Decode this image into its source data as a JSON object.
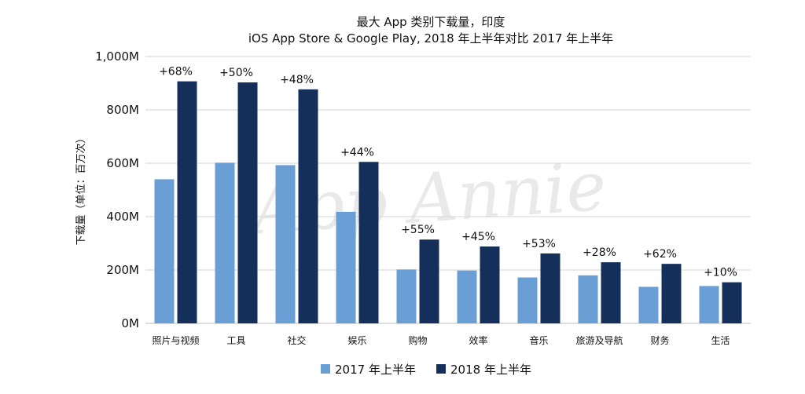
{
  "chart_data": {
    "type": "bar",
    "title": "最大 App 类别下载量，印度",
    "subtitle": "iOS App Store & Google Play, 2018 年上半年对比 2017 年上半年",
    "xlabel": "",
    "ylabel": "下载量（单位：百万次）",
    "ylim": [
      0,
      1000
    ],
    "yticks": [
      0,
      200,
      400,
      600,
      800,
      1000
    ],
    "ytick_labels": [
      "0M",
      "200M",
      "400M",
      "600M",
      "800M",
      "1,000M"
    ],
    "categories": [
      "照片与视频",
      "工具",
      "社交",
      "娱乐",
      "购物",
      "效率",
      "音乐",
      "旅游及导航",
      "财务",
      "生活"
    ],
    "series": [
      {
        "name": "2017 年上半年",
        "color": "#6a9fd6",
        "values": [
          540,
          602,
          593,
          418,
          202,
          198,
          172,
          180,
          137,
          140
        ]
      },
      {
        "name": "2018 年上半年",
        "color": "#14305a",
        "values": [
          907,
          903,
          877,
          605,
          314,
          288,
          262,
          229,
          223,
          154
        ]
      }
    ],
    "growth_labels": [
      "+68%",
      "+50%",
      "+48%",
      "+44%",
      "+55%",
      "+45%",
      "+53%",
      "+28%",
      "+62%",
      "+10%"
    ],
    "grid": true,
    "legend": "bottom",
    "watermark": "App Annie"
  }
}
